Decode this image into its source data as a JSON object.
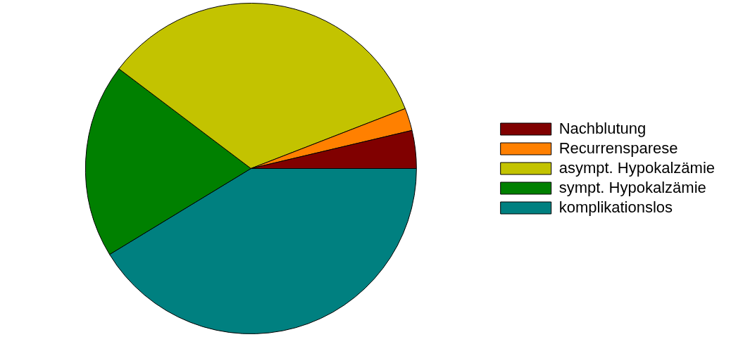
{
  "chart_data": {
    "type": "pie",
    "categories": [
      "Nachblutung",
      "Recurrensparese",
      "asympt. Hypokalzämie",
      "sympt. Hypokalzämie",
      "komplikationslos"
    ],
    "values": [
      3.7,
      2.2,
      33.8,
      19,
      41.3
    ],
    "colors": [
      "#800000",
      "#ff8000",
      "#c3c300",
      "#008000",
      "#008080"
    ],
    "legend": "right"
  }
}
